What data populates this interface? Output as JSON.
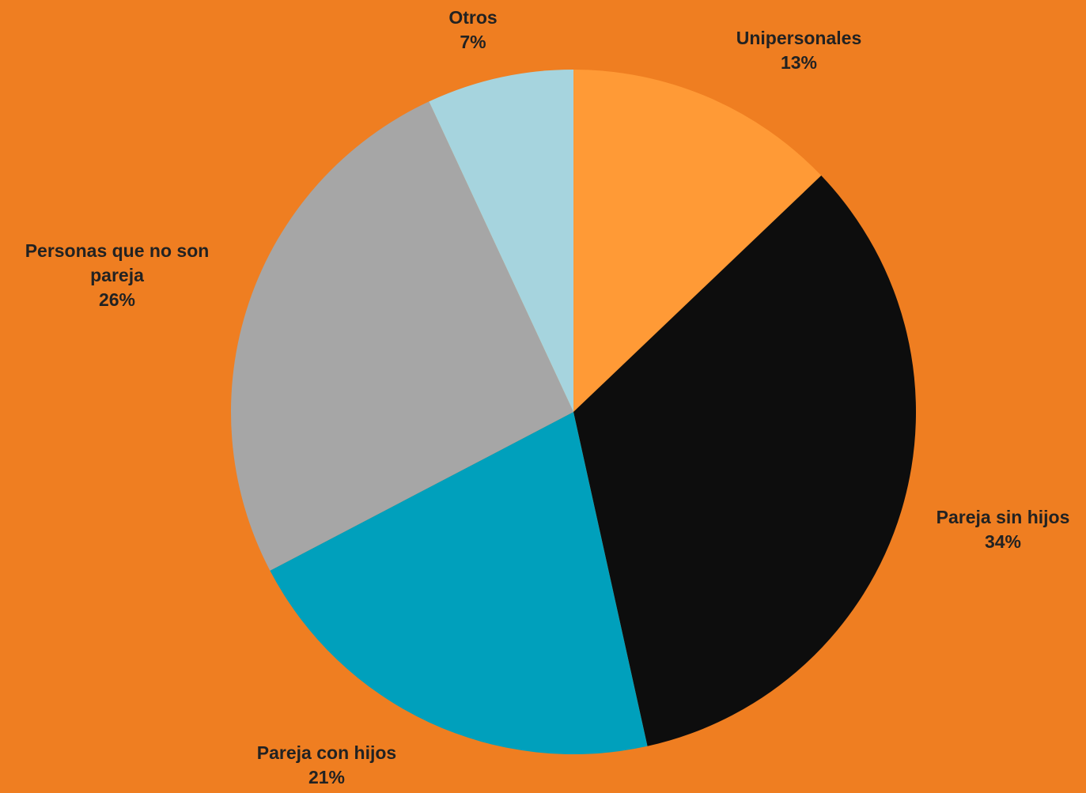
{
  "background_color": "#ef7e21",
  "chart_data": {
    "type": "pie",
    "title": "",
    "slices": [
      {
        "label": "Unipersonales",
        "label_lines": [
          "Unipersonales"
        ],
        "value": 13,
        "display": "13%",
        "color": "#ff9a36"
      },
      {
        "label": "Pareja sin hijos",
        "label_lines": [
          "Pareja sin hijos"
        ],
        "value": 34,
        "display": "34%",
        "color": "#0d0d0d"
      },
      {
        "label": "Pareja con hijos",
        "label_lines": [
          "Pareja con hijos"
        ],
        "value": 21,
        "display": "21%",
        "color": "#00a0bc"
      },
      {
        "label": "Personas que no son pareja",
        "label_lines": [
          "Personas que no son",
          "pareja"
        ],
        "value": 26,
        "display": "26%",
        "color": "#a6a6a6"
      },
      {
        "label": "Otros",
        "label_lines": [
          "Otros"
        ],
        "value": 7,
        "display": "7%",
        "color": "#a6d4de"
      }
    ],
    "start": "12 o'clock",
    "direction": "clockwise",
    "legend": "none",
    "data_labels": "outside"
  }
}
